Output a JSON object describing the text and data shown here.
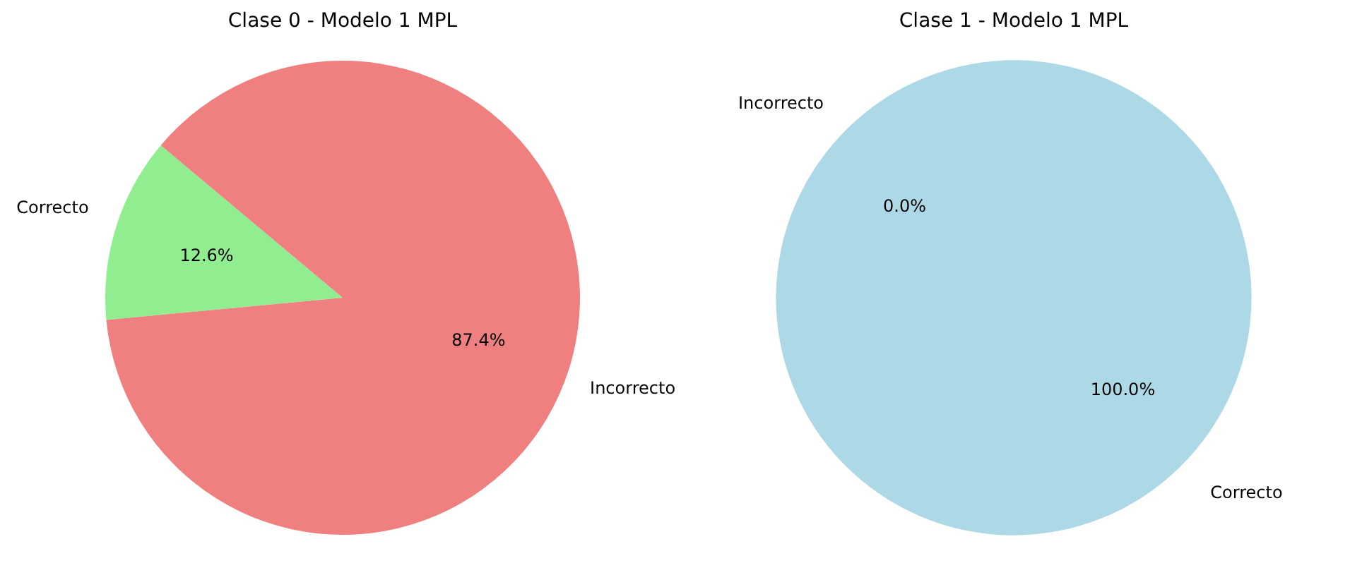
{
  "chart_data": [
    {
      "type": "pie",
      "title": "Clase 0 - Modelo 1 MPL",
      "categories": [
        "Correcto",
        "Incorrecto"
      ],
      "values": [
        12.6,
        87.4
      ],
      "colors": [
        "#90ee90",
        "#f08080"
      ],
      "value_labels": [
        "12.6%",
        "87.4%"
      ]
    },
    {
      "type": "pie",
      "title": "Clase 1 - Modelo 1 MPL",
      "categories": [
        "Correcto",
        "Incorrecto"
      ],
      "values": [
        100.0,
        0.0
      ],
      "colors": [
        "#add8e6",
        "#f08080"
      ],
      "value_labels": [
        "100.0%",
        "0.0%"
      ]
    }
  ]
}
